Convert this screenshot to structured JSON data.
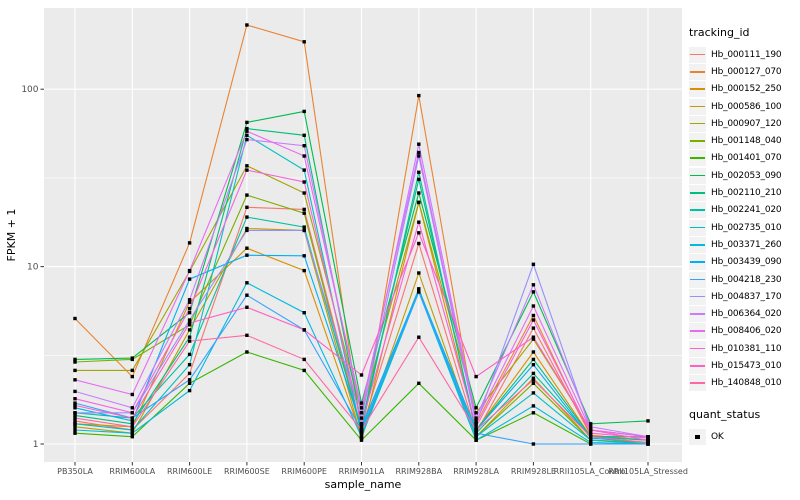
{
  "legend": {
    "tracking_title": "tracking_id",
    "quant_title": "quant_status",
    "quant_ok_label": "OK"
  },
  "chart_data": {
    "type": "line",
    "x_type": "categorical",
    "title": "",
    "xlabel": "sample_name",
    "ylabel": "FPKM + 1",
    "y_scale": "log10",
    "y_ticks": [
      100,
      10,
      1
    ],
    "y_tick_labels": [
      "100",
      "10",
      "1"
    ],
    "minor_grid_at": [
      3.162,
      31.62
    ],
    "ylim": [
      1,
      290
    ],
    "grid": true,
    "legend_position": "right",
    "panel_background": "#EBEBEB",
    "point_marker": {
      "shape": "square",
      "color": "#000000",
      "status_label": "OK"
    },
    "categories": [
      "PB350LA",
      "RRIM600LA",
      "RRIM600LE",
      "RRIM600SE",
      "RRIM600PE",
      "RRIM901LA",
      "RRIM928BA",
      "RRIM928LA",
      "RRIM928LE",
      "RRII105LA_Control",
      "RRII105LA_Stressed"
    ],
    "series": [
      {
        "name": "Hb_000111_190",
        "color": "#F8766D",
        "values": [
          1.35,
          1.2,
          2.5,
          21.6,
          21,
          1.2,
          13.5,
          1.15,
          4.5,
          1.12,
          1.05
        ]
      },
      {
        "name": "Hb_000127_070",
        "color": "#EA8331",
        "values": [
          5.1,
          2.4,
          13.6,
          230,
          185,
          1.15,
          92,
          1.3,
          5.3,
          1.12,
          1.05
        ]
      },
      {
        "name": "Hb_000152_250",
        "color": "#D89000",
        "values": [
          1.3,
          1.25,
          6.3,
          12.7,
          9.5,
          1.1,
          23,
          1.2,
          3.3,
          1.1,
          1.05
        ]
      },
      {
        "name": "Hb_000586_100",
        "color": "#C09B00",
        "values": [
          1.25,
          1.15,
          4.4,
          16.4,
          16,
          1.08,
          9.2,
          1.1,
          2.35,
          1.05,
          1.02
        ]
      },
      {
        "name": "Hb_000907_120",
        "color": "#A3A500",
        "values": [
          2.6,
          2.6,
          9.4,
          37,
          26,
          1.5,
          23,
          1.5,
          3.9,
          1.2,
          1.1
        ]
      },
      {
        "name": "Hb_001148_040",
        "color": "#7CAE00",
        "values": [
          2.9,
          3.0,
          4.7,
          25.3,
          20,
          1.15,
          7.5,
          1.1,
          2.2,
          1.05,
          1.02
        ]
      },
      {
        "name": "Hb_001401_070",
        "color": "#39B600",
        "values": [
          1.15,
          1.1,
          2.2,
          3.3,
          2.6,
          1.05,
          2.2,
          1.05,
          1.5,
          1.0,
          1.0
        ]
      },
      {
        "name": "Hb_002053_090",
        "color": "#00BB4E",
        "values": [
          3.0,
          3.05,
          5.5,
          65,
          75,
          1.7,
          26,
          1.6,
          7.2,
          1.3,
          1.35
        ]
      },
      {
        "name": "Hb_002110_210",
        "color": "#00BF7D",
        "values": [
          1.45,
          1.3,
          4.0,
          60,
          55,
          1.3,
          31,
          1.2,
          3.0,
          1.1,
          1.1
        ]
      },
      {
        "name": "Hb_002241_020",
        "color": "#00C1A3",
        "values": [
          1.5,
          1.4,
          3.2,
          19,
          16.7,
          1.2,
          34,
          1.15,
          2.5,
          1.1,
          1.05
        ]
      },
      {
        "name": "Hb_002735_010",
        "color": "#00BFC4",
        "values": [
          1.3,
          1.2,
          2.8,
          55,
          35,
          1.15,
          7.3,
          1.1,
          1.94,
          1.05,
          1.0
        ]
      },
      {
        "name": "Hb_003371_260",
        "color": "#00BAE0",
        "values": [
          1.2,
          1.15,
          2.0,
          8.1,
          5.5,
          1.1,
          7.2,
          1.05,
          1.64,
          1.02,
          1.0
        ]
      },
      {
        "name": "Hb_003439_090",
        "color": "#00B0F6",
        "values": [
          1.6,
          1.35,
          8.5,
          11.6,
          11.5,
          1.25,
          7.4,
          1.2,
          2.8,
          1.08,
          1.02
        ]
      },
      {
        "name": "Hb_004218_230",
        "color": "#35A2FF",
        "values": [
          1.7,
          1.4,
          2.3,
          6.9,
          4.4,
          1.2,
          7.2,
          1.15,
          1.0,
          1.0,
          1.0
        ]
      },
      {
        "name": "Hb_004837_170",
        "color": "#9590FF",
        "values": [
          1.5,
          1.5,
          5.0,
          16,
          16,
          1.4,
          42,
          1.3,
          10.3,
          1.2,
          1.1
        ]
      },
      {
        "name": "Hb_006364_020",
        "color": "#C77CFF",
        "values": [
          1.98,
          1.6,
          6.5,
          52,
          48,
          1.5,
          49,
          1.4,
          7.9,
          1.25,
          1.1
        ]
      },
      {
        "name": "Hb_008406_020",
        "color": "#E76BF3",
        "values": [
          2.3,
          1.9,
          9.5,
          58,
          42,
          1.6,
          44,
          1.35,
          6.0,
          1.2,
          1.1
        ]
      },
      {
        "name": "Hb_010381_110",
        "color": "#FA62DB",
        "values": [
          1.8,
          1.5,
          5.8,
          35,
          30,
          1.3,
          17.8,
          1.25,
          5.0,
          1.15,
          1.08
        ]
      },
      {
        "name": "Hb_015473_010",
        "color": "#FF61C3",
        "values": [
          1.65,
          1.4,
          4.8,
          5.9,
          4.4,
          2.45,
          15.5,
          2.4,
          4.0,
          1.2,
          1.05
        ]
      },
      {
        "name": "Hb_140848_010",
        "color": "#FF67A4",
        "values": [
          1.4,
          1.25,
          3.8,
          4.1,
          3.0,
          1.2,
          4.0,
          1.2,
          2.3,
          1.1,
          1.02
        ]
      }
    ]
  }
}
